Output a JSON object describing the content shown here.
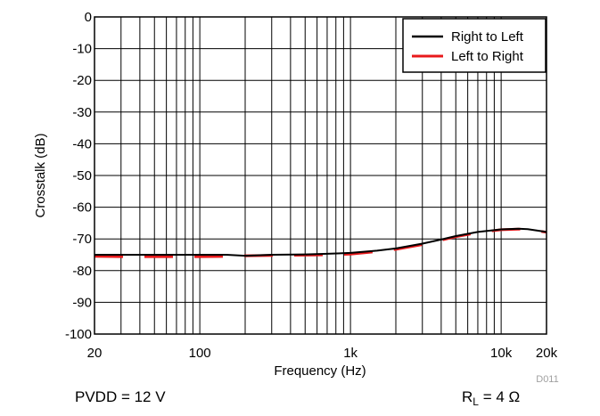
{
  "chart_data": {
    "type": "line",
    "xscale": "log",
    "xlim": [
      20,
      20000
    ],
    "ylim": [
      -100,
      0
    ],
    "xlabel": "Frequency (Hz)",
    "ylabel": "Crosstalk (dB)",
    "x_tick_labels": [
      {
        "value": 20,
        "label": "20"
      },
      {
        "value": 100,
        "label": "100"
      },
      {
        "value": 1000,
        "label": "1k"
      },
      {
        "value": 10000,
        "label": "10k"
      },
      {
        "value": 20000,
        "label": "20k"
      }
    ],
    "y_ticks": [
      0,
      -10,
      -20,
      -30,
      -40,
      -50,
      -60,
      -70,
      -80,
      -90,
      -100
    ],
    "grid": true,
    "legend_position": "top-right",
    "series": [
      {
        "name": "Right to Left",
        "color": "#000000",
        "style": "solid",
        "x": [
          20,
          30,
          50,
          100,
          150,
          200,
          300,
          500,
          700,
          1000,
          1500,
          2000,
          3000,
          4000,
          5000,
          7000,
          10000,
          13000,
          15000,
          20000
        ],
        "y": [
          -75,
          -75,
          -75,
          -75,
          -75,
          -75.3,
          -75,
          -74.9,
          -74.7,
          -74.4,
          -73.7,
          -73,
          -71.5,
          -70.2,
          -69.1,
          -67.8,
          -67,
          -66.8,
          -66.9,
          -67.8
        ]
      },
      {
        "name": "Left to Right",
        "color": "#e8191b",
        "style": "dashed",
        "x": [
          20,
          30,
          50,
          100,
          150,
          200,
          300,
          500,
          700,
          1000,
          1500,
          2000,
          3000,
          4000,
          5000,
          7000,
          10000,
          13000,
          15000,
          20000
        ],
        "y": [
          -75.5,
          -75.6,
          -75.6,
          -75.6,
          -75.5,
          -75.3,
          -75.2,
          -75.1,
          -75,
          -74.8,
          -74,
          -73.3,
          -71.8,
          -70.4,
          -69.3,
          -68,
          -67.1,
          -66.9,
          -67,
          -67.9
        ]
      }
    ]
  },
  "annotations": {
    "code": "D011",
    "left_note": "PVDD = 12 V",
    "right_note_main": "R",
    "right_note_sub": "L",
    "right_note_tail": " = 4 Ω"
  }
}
